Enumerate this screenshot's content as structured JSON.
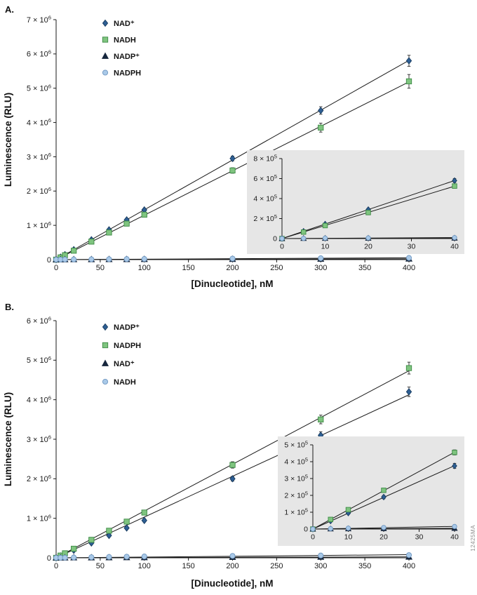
{
  "watermark": "12425MA",
  "panels": [
    {
      "label": "A."
    },
    {
      "label": "B."
    }
  ],
  "chart_data": [
    {
      "type": "scatter",
      "panel": "A",
      "xlabel": "[Dinucleotide], nM",
      "ylabel": "Luminescence (RLU)",
      "xlim": [
        0,
        400
      ],
      "ylim": [
        0,
        7000000
      ],
      "xticks": [
        0,
        50,
        100,
        150,
        200,
        250,
        300,
        350,
        400
      ],
      "yticks": [
        0,
        1000000,
        2000000,
        3000000,
        4000000,
        5000000,
        6000000,
        7000000
      ],
      "y_exponent": 6,
      "legend_position": "upper-left-inside",
      "grid": false,
      "x": [
        0,
        5,
        10,
        20,
        40,
        60,
        80,
        100,
        200,
        300,
        400
      ],
      "series": [
        {
          "name": "NAD⁺",
          "marker": "diamond",
          "fill": "#2e5f94",
          "edge": "#173a5e",
          "values": [
            0,
            73000,
            145000,
            290000,
            580000,
            870000,
            1160000,
            1450000,
            2950000,
            4350000,
            5800000
          ],
          "errors": [
            0,
            0,
            0,
            10000,
            20000,
            25000,
            35000,
            45000,
            70000,
            110000,
            160000
          ]
        },
        {
          "name": "NADH",
          "marker": "square",
          "fill": "#7fc47f",
          "edge": "#3d8a46",
          "values": [
            0,
            65000,
            130000,
            260000,
            525000,
            790000,
            1050000,
            1310000,
            2600000,
            3850000,
            5200000
          ],
          "errors": [
            0,
            0,
            0,
            10000,
            20000,
            25000,
            35000,
            50000,
            80000,
            130000,
            200000
          ]
        },
        {
          "name": "NADP⁺",
          "marker": "triangle",
          "fill": "#16263d",
          "edge": "#16263d",
          "values": [
            0,
            1000,
            2000,
            3000,
            4000,
            6000,
            7000,
            9000,
            13000,
            17000,
            21000
          ],
          "errors": [
            0,
            0,
            0,
            0,
            0,
            0,
            0,
            0,
            0,
            0,
            0
          ]
        },
        {
          "name": "NADPH",
          "marker": "circle",
          "fill": "#a9c9e8",
          "edge": "#6e96c0",
          "values": [
            0,
            2000,
            4000,
            6000,
            9000,
            13000,
            16000,
            19000,
            30000,
            40000,
            50000
          ],
          "errors": [
            0,
            0,
            0,
            0,
            0,
            0,
            0,
            0,
            0,
            0,
            0
          ]
        }
      ],
      "inset": {
        "xlim": [
          0,
          40
        ],
        "ylim": [
          0,
          800000
        ],
        "xticks": [
          0,
          10,
          20,
          30,
          40
        ],
        "yticks": [
          0,
          200000,
          400000,
          600000,
          800000
        ],
        "y_exponent": 5
      }
    },
    {
      "type": "scatter",
      "panel": "B",
      "xlabel": "[Dinucleotide], nM",
      "ylabel": "Luminescence (RLU)",
      "xlim": [
        0,
        400
      ],
      "ylim": [
        0,
        6000000
      ],
      "xticks": [
        0,
        50,
        100,
        150,
        200,
        250,
        300,
        350,
        400
      ],
      "yticks": [
        0,
        1000000,
        2000000,
        3000000,
        4000000,
        5000000,
        6000000
      ],
      "y_exponent": 6,
      "legend_position": "upper-left-inside",
      "grid": false,
      "x": [
        0,
        5,
        10,
        20,
        40,
        60,
        80,
        100,
        200,
        300,
        400
      ],
      "series": [
        {
          "name": "NADP⁺",
          "marker": "diamond",
          "fill": "#2e5f94",
          "edge": "#173a5e",
          "values": [
            0,
            48000,
            95000,
            190000,
            375000,
            565000,
            755000,
            945000,
            2000000,
            3100000,
            4200000
          ],
          "errors": [
            0,
            0,
            0,
            10000,
            15000,
            20000,
            30000,
            40000,
            60000,
            90000,
            120000
          ]
        },
        {
          "name": "NADPH",
          "marker": "square",
          "fill": "#7fc47f",
          "edge": "#3d8a46",
          "values": [
            0,
            57000,
            115000,
            230000,
            455000,
            685000,
            915000,
            1145000,
            2350000,
            3500000,
            4800000
          ],
          "errors": [
            0,
            0,
            0,
            10000,
            15000,
            25000,
            35000,
            45000,
            80000,
            110000,
            150000
          ]
        },
        {
          "name": "NAD⁺",
          "marker": "triangle",
          "fill": "#16263d",
          "edge": "#16263d",
          "values": [
            0,
            800,
            1500,
            2500,
            4000,
            5500,
            7000,
            9000,
            14000,
            18000,
            22000
          ],
          "errors": [
            0,
            0,
            0,
            0,
            0,
            0,
            0,
            0,
            0,
            0,
            0
          ]
        },
        {
          "name": "NADH",
          "marker": "circle",
          "fill": "#a9c9e8",
          "edge": "#6e96c0",
          "values": [
            0,
            2500,
            5000,
            9000,
            15000,
            22000,
            28000,
            34000,
            48000,
            58000,
            68000
          ],
          "errors": [
            0,
            0,
            0,
            0,
            0,
            0,
            0,
            0,
            0,
            0,
            0
          ]
        }
      ],
      "inset": {
        "xlim": [
          0,
          40
        ],
        "ylim": [
          0,
          500000
        ],
        "xticks": [
          0,
          10,
          20,
          30,
          40
        ],
        "yticks": [
          0,
          100000,
          200000,
          300000,
          400000,
          500000
        ],
        "y_exponent": 5
      }
    }
  ]
}
